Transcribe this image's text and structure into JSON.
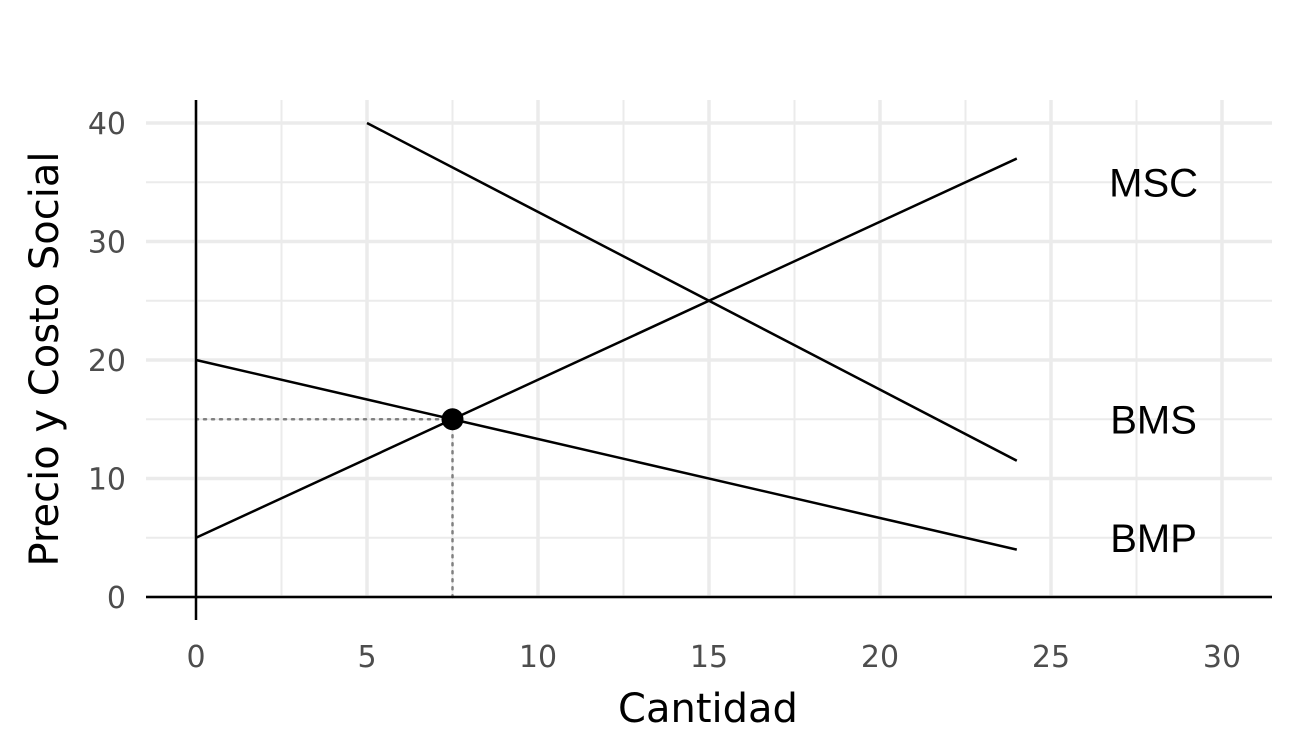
{
  "chart_data": {
    "type": "line",
    "title": "",
    "xlabel": "Cantidad",
    "ylabel": "Precio y Costo Social",
    "xlim": [
      -1.5,
      31.5
    ],
    "ylim": [
      -2,
      42
    ],
    "x_ticks": [
      0,
      5,
      10,
      15,
      20,
      25,
      30
    ],
    "y_ticks": [
      0,
      10,
      20,
      30,
      40
    ],
    "x_tick_labels": [
      "0",
      "5",
      "10",
      "15",
      "20",
      "25",
      "30"
    ],
    "y_tick_labels": [
      "0",
      "10",
      "20",
      "30",
      "40"
    ],
    "grid": true,
    "series": [
      {
        "name": "MSC",
        "x": [
          0,
          24
        ],
        "y": [
          5,
          37
        ],
        "label_x": 28,
        "label_y": 35
      },
      {
        "name": "BMS",
        "x": [
          5,
          24
        ],
        "y": [
          40,
          11.5
        ],
        "label_x": 28,
        "label_y": 15
      },
      {
        "name": "BMP",
        "x": [
          0,
          24
        ],
        "y": [
          20,
          4
        ],
        "label_x": 28,
        "label_y": 5
      }
    ],
    "equilibrium_point": {
      "x": 7.5,
      "y": 15
    },
    "guide_lines": {
      "style": "dotted",
      "to_axes_from": {
        "x": 7.5,
        "y": 15
      }
    },
    "colors": {
      "lines": "#000000",
      "grid": "#ebebeb",
      "guides": "#808080"
    }
  }
}
